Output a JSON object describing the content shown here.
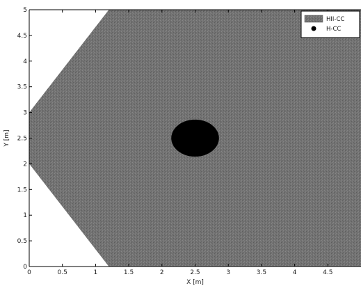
{
  "chart_data": {
    "type": "area",
    "xlabel": "X [m]",
    "ylabel": "Y [m]",
    "xlim": [
      0,
      5
    ],
    "ylim": [
      0,
      5
    ],
    "x_ticks": [
      "0",
      "0.5",
      "1",
      "1.5",
      "2",
      "2.5",
      "3",
      "3.5",
      "4",
      "4.5"
    ],
    "y_ticks": [
      "0",
      "0.5",
      "1",
      "1.5",
      "2",
      "2.5",
      "3",
      "3.5",
      "4",
      "4.5",
      "5"
    ],
    "grid": false,
    "legend_position": "top-right",
    "series": [
      {
        "name": "HII-CC",
        "kind": "region",
        "color": "#6f6f6f",
        "polygon": [
          [
            1.2,
            0
          ],
          [
            5,
            0
          ],
          [
            5,
            5
          ],
          [
            1.2,
            5
          ],
          [
            0,
            3
          ],
          [
            0,
            2
          ]
        ]
      },
      {
        "name": "H-CC",
        "kind": "disk",
        "color": "#000000",
        "center": [
          2.5,
          2.5
        ],
        "radius": 0.36
      }
    ]
  }
}
